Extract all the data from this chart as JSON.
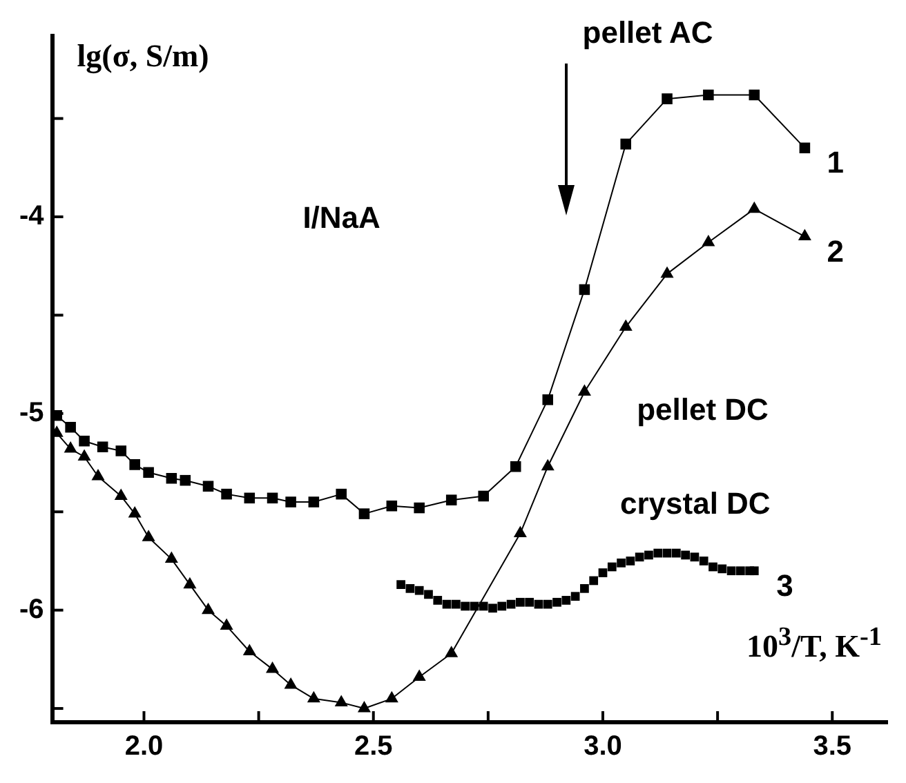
{
  "chart_data": {
    "type": "line",
    "xlabel": "10$^{3}$/T, K$^{-1}$",
    "ylabel": "lg(σ, S/m)",
    "annotations": [
      "pellet AC",
      "pellet DC",
      "crystal DC",
      "I/NaA"
    ],
    "xlim": [
      1.8,
      3.62
    ],
    "ylim": [
      -6.57,
      -3.08
    ],
    "xticks": [
      {
        "value": 2,
        "label": "2.0"
      },
      {
        "value": 2.25,
        "label": null
      },
      2.5,
      {
        "value": 2.75,
        "label": null
      },
      {
        "value": 3,
        "label": "3.0"
      },
      {
        "value": 3.25,
        "label": null
      },
      3.5
    ],
    "yticks": [
      {
        "value": -6.5,
        "label": null
      },
      -6,
      {
        "value": -5.5,
        "label": null
      },
      -5,
      {
        "value": -4.5,
        "label": null
      },
      -4,
      {
        "value": -3.5,
        "label": null
      }
    ],
    "legend": false,
    "line_style": "solid",
    "series": [
      {
        "name": "1",
        "color": "#000000",
        "marker": "square",
        "x": [
          1.81,
          1.84,
          1.87,
          1.91,
          1.95,
          1.98,
          2.01,
          2.06,
          2.09,
          2.14,
          2.18,
          2.23,
          2.28,
          2.32,
          2.37,
          2.43,
          2.48,
          2.54,
          2.6,
          2.67,
          2.74,
          2.81,
          2.88,
          2.96,
          3.05,
          3.14,
          3.23,
          3.33,
          3.44
        ],
        "values": [
          -5.01,
          -5.07,
          -5.14,
          -5.17,
          -5.19,
          -5.26,
          -5.3,
          -5.33,
          -5.34,
          -5.37,
          -5.41,
          -5.43,
          -5.43,
          -5.45,
          -5.45,
          -5.41,
          -5.51,
          -5.47,
          -5.48,
          -5.44,
          -5.42,
          -5.27,
          -4.93,
          -4.37,
          -3.63,
          -3.4,
          -3.38,
          -3.38,
          -3.65
        ]
      },
      {
        "name": "2",
        "color": "#000000",
        "marker": "triangle",
        "x": [
          1.81,
          1.84,
          1.87,
          1.9,
          1.95,
          1.98,
          2.01,
          2.06,
          2.1,
          2.14,
          2.18,
          2.23,
          2.28,
          2.32,
          2.37,
          2.43,
          2.48,
          2.54,
          2.6,
          2.67,
          2.82,
          2.88,
          2.96,
          3.05,
          3.14,
          3.23,
          3.33,
          3.44
        ],
        "values": [
          -5.1,
          -5.18,
          -5.22,
          -5.32,
          -5.42,
          -5.51,
          -5.63,
          -5.74,
          -5.87,
          -6.0,
          -6.08,
          -6.21,
          -6.3,
          -6.38,
          -6.45,
          -6.47,
          -6.5,
          -6.45,
          -6.34,
          -6.22,
          -5.61,
          -5.27,
          -4.89,
          -4.56,
          -4.29,
          -4.13,
          -3.96,
          -4.1
        ]
      },
      {
        "name": "3",
        "type": "scatter",
        "color": "#000000",
        "marker": "square",
        "x": [
          2.56,
          2.58,
          2.6,
          2.62,
          2.64,
          2.66,
          2.68,
          2.7,
          2.72,
          2.74,
          2.76,
          2.78,
          2.8,
          2.82,
          2.84,
          2.86,
          2.88,
          2.9,
          2.92,
          2.94,
          2.96,
          2.98,
          3.0,
          3.02,
          3.04,
          3.06,
          3.08,
          3.1,
          3.12,
          3.14,
          3.16,
          3.18,
          3.2,
          3.22,
          3.24,
          3.26,
          3.28,
          3.3,
          3.32,
          3.33
        ],
        "values": [
          -5.87,
          -5.89,
          -5.9,
          -5.92,
          -5.95,
          -5.97,
          -5.97,
          -5.98,
          -5.98,
          -5.98,
          -5.99,
          -5.98,
          -5.97,
          -5.96,
          -5.96,
          -5.97,
          -5.97,
          -5.96,
          -5.95,
          -5.93,
          -5.89,
          -5.85,
          -5.81,
          -5.78,
          -5.76,
          -5.75,
          -5.73,
          -5.72,
          -5.71,
          -5.71,
          -5.71,
          -5.72,
          -5.73,
          -5.75,
          -5.78,
          -5.79,
          -5.8,
          -5.8,
          -5.8,
          -5.8
        ]
      }
    ]
  }
}
